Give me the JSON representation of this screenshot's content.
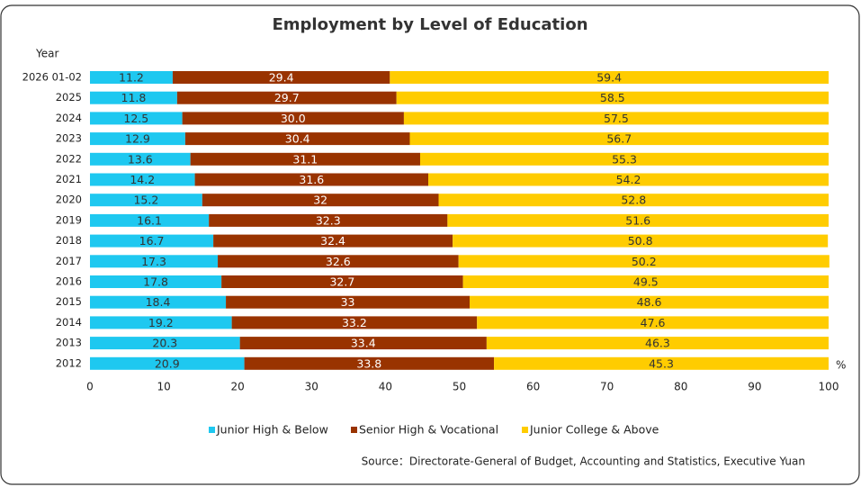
{
  "chart_data": {
    "type": "stacked_barh",
    "title": "Employment by Level of Education",
    "y_axis_label": "Year",
    "x_unit_label": "%",
    "source": "Source：Directorate-General of Budget, Accounting and Statistics, Executive Yuan",
    "categories": [
      "2026 01-02",
      "2025",
      "2024",
      "2023",
      "2022",
      "2021",
      "2020",
      "2019",
      "2018",
      "2017",
      "2016",
      "2015",
      "2014",
      "2013",
      "2012"
    ],
    "series": [
      {
        "name": "Junior High & Below",
        "color": "#1ec8f0",
        "values": [
          11.2,
          11.8,
          12.5,
          12.9,
          13.6,
          14.2,
          15.2,
          16.1,
          16.7,
          17.3,
          17.8,
          18.4,
          19.2,
          20.3,
          20.9
        ]
      },
      {
        "name": "Senior High & Vocational",
        "color": "#993300",
        "values": [
          29.4,
          29.7,
          30,
          30.4,
          31.1,
          31.6,
          32,
          32.3,
          32.4,
          32.6,
          32.7,
          33,
          33.2,
          33.4,
          33.8
        ],
        "value_labels": [
          "29.4",
          "29.7",
          "30.0",
          "30.4",
          "31.1",
          "31.6",
          "32",
          "32.3",
          "32.4",
          "32.6",
          "32.7",
          "33",
          "33.2",
          "33.4",
          "33.8"
        ]
      },
      {
        "name": "Junior College & Above",
        "color": "#ffcc00",
        "values": [
          59.4,
          58.5,
          57.5,
          56.7,
          55.3,
          54.2,
          52.8,
          51.6,
          50.8,
          50.2,
          49.5,
          48.6,
          47.6,
          46.3,
          45.3
        ]
      }
    ],
    "xlim": [
      0,
      100
    ],
    "xticks": [
      0,
      10,
      20,
      30,
      40,
      50,
      60,
      70,
      80,
      90,
      100
    ]
  }
}
